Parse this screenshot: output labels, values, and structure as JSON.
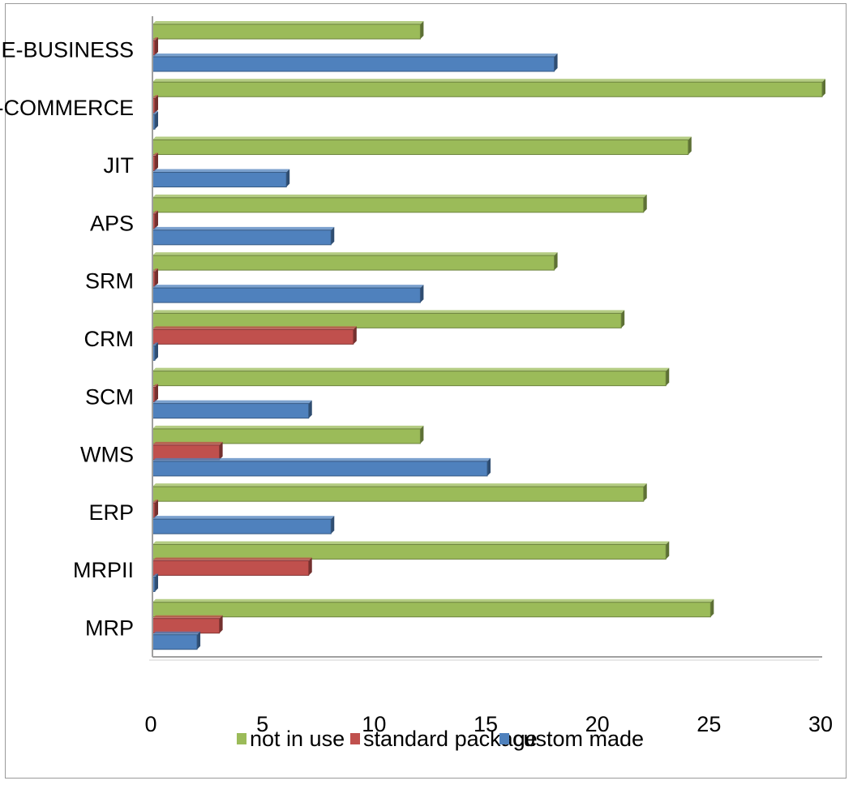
{
  "chart_data": {
    "type": "bar",
    "orientation": "horizontal",
    "categories": [
      "E-BUSINESS",
      "E-COMMERCE",
      "JIT",
      "APS",
      "SRM",
      "CRM",
      "SCM",
      "WMS",
      "ERP",
      "MRPII",
      "MRP"
    ],
    "series": [
      {
        "name": "not in use",
        "color": "#9BBB59",
        "values": [
          12,
          30,
          24,
          22,
          18,
          21,
          23,
          12,
          22,
          23,
          25
        ]
      },
      {
        "name": "standard package",
        "color": "#C0504D",
        "values": [
          0,
          0,
          0,
          0,
          0,
          9,
          0,
          3,
          0,
          7,
          3
        ]
      },
      {
        "name": "custom made",
        "color": "#4F81BD",
        "values": [
          18,
          0,
          6,
          8,
          12,
          0,
          7,
          15,
          8,
          0,
          2
        ]
      }
    ],
    "xlim": [
      0,
      30
    ],
    "xticks": [
      0,
      5,
      10,
      15,
      20,
      25,
      30
    ],
    "grid": false,
    "legend_position": "bottom"
  }
}
